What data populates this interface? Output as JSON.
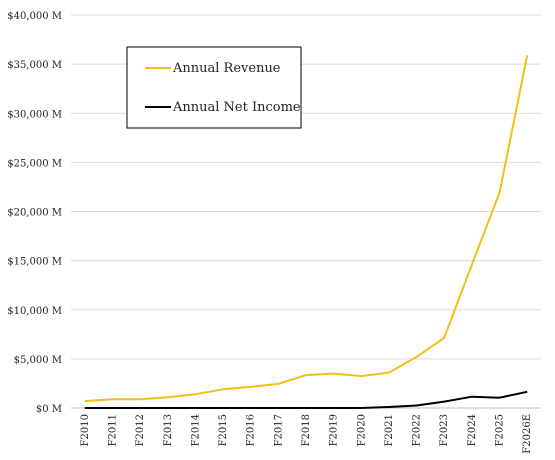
{
  "chart_data": {
    "type": "line",
    "title": "",
    "xlabel": "",
    "ylabel": "",
    "categories": [
      "F2010",
      "F2011",
      "F2012",
      "F2013",
      "F2014",
      "F2015",
      "F2016",
      "F2017",
      "F2018",
      "F2019",
      "F2020",
      "F2021",
      "F2022",
      "F2023",
      "F2024",
      "F2025",
      "F2026E"
    ],
    "ylim": [
      0,
      40000
    ],
    "yticks": [
      0,
      5000,
      10000,
      15000,
      20000,
      25000,
      30000,
      35000,
      40000
    ],
    "ytick_labels": [
      "$0 M",
      "$5,000 M",
      "$10,000 M",
      "$15,000 M",
      "$20,000 M",
      "$25,000 M",
      "$30,000 M",
      "$35,000 M",
      "$40,000 M"
    ],
    "grid": true,
    "legend_placement": "top-left",
    "series": [
      {
        "name": "Annual Revenue",
        "color": "#F2BE1A",
        "values": [
          700,
          900,
          900,
          1100,
          1400,
          1900,
          2150,
          2450,
          3350,
          3500,
          3250,
          3600,
          5200,
          7150,
          14600,
          21900,
          35900
        ]
      },
      {
        "name": "Annual Net Income",
        "color": "#000000",
        "values": [
          0,
          0,
          0,
          0,
          0,
          0,
          0,
          0,
          0,
          0,
          0,
          100,
          250,
          650,
          1150,
          1050,
          1650
        ]
      }
    ]
  }
}
